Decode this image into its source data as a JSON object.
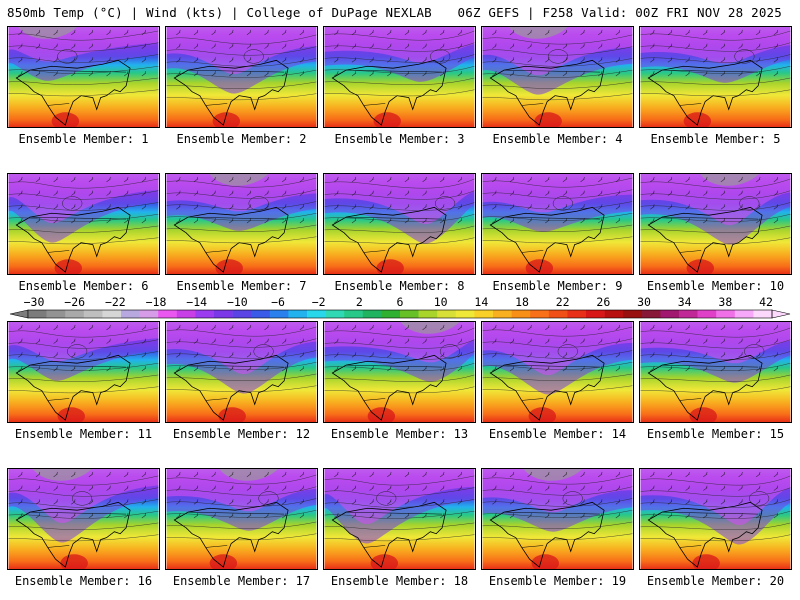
{
  "header": {
    "left": "850mb Temp (°C) | Wind (kts) | College of DuPage NEXLAB",
    "right": "06Z GEFS | F258 Valid: 00Z FRI NOV 28 2025"
  },
  "panels": [
    {
      "caption": "Ensemble Member: 1"
    },
    {
      "caption": "Ensemble Member: 2"
    },
    {
      "caption": "Ensemble Member: 3"
    },
    {
      "caption": "Ensemble Member: 4"
    },
    {
      "caption": "Ensemble Member: 5"
    },
    {
      "caption": "Ensemble Member: 6"
    },
    {
      "caption": "Ensemble Member: 7"
    },
    {
      "caption": "Ensemble Member: 8"
    },
    {
      "caption": "Ensemble Member: 9"
    },
    {
      "caption": "Ensemble Member: 10"
    },
    {
      "caption": "Ensemble Member: 11"
    },
    {
      "caption": "Ensemble Member: 12"
    },
    {
      "caption": "Ensemble Member: 13"
    },
    {
      "caption": "Ensemble Member: 14"
    },
    {
      "caption": "Ensemble Member: 15"
    },
    {
      "caption": "Ensemble Member: 16"
    },
    {
      "caption": "Ensemble Member: 17"
    },
    {
      "caption": "Ensemble Member: 18"
    },
    {
      "caption": "Ensemble Member: 19"
    },
    {
      "caption": "Ensemble Member: 20"
    }
  ],
  "colorbar": {
    "tick_labels": [
      "−30",
      "−26",
      "−22",
      "−18",
      "−14",
      "−10",
      "−6",
      "−2",
      "2",
      "6",
      "10",
      "14",
      "18",
      "22",
      "26",
      "30",
      "34",
      "38",
      "42"
    ],
    "colors": [
      "#7c7c7c",
      "#939393",
      "#a9a9a9",
      "#bfbfbf",
      "#d6d6d6",
      "#b7a8e0",
      "#d69ce8",
      "#ea57f0",
      "#c83fe8",
      "#9b3cf0",
      "#7b38e8",
      "#5a44e6",
      "#3a5ae8",
      "#2a80ec",
      "#22b2ee",
      "#28d8ea",
      "#30d8b4",
      "#28c888",
      "#20b460",
      "#30b030",
      "#68c028",
      "#a8d42c",
      "#d8e038",
      "#f0e838",
      "#f8d028",
      "#f8b020",
      "#f89018",
      "#f87018",
      "#f05018",
      "#e83018",
      "#d81818",
      "#b81010",
      "#981010",
      "#881838",
      "#a01870",
      "#c02898",
      "#e040c8",
      "#f070e8",
      "#f8a8f8",
      "#fcd8fc"
    ]
  }
}
